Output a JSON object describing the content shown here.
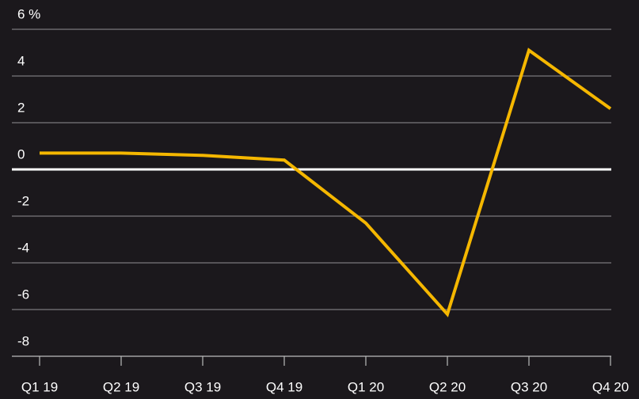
{
  "chart_data": {
    "type": "line",
    "categories": [
      "Q1 19",
      "Q2 19",
      "Q3 19",
      "Q4 19",
      "Q1 20",
      "Q2 20",
      "Q3 20",
      "Q4 20"
    ],
    "series": [
      {
        "color": "#f5b700",
        "values": [
          0.7,
          0.7,
          0.6,
          0.4,
          -2.3,
          -6.2,
          5.1,
          2.6
        ]
      }
    ],
    "ylim": [
      -8,
      6
    ],
    "yticks": [
      -8,
      -6,
      -4,
      -2,
      0,
      2,
      4,
      {
        "value": 6,
        "label": "6 %"
      }
    ],
    "grid": true
  }
}
